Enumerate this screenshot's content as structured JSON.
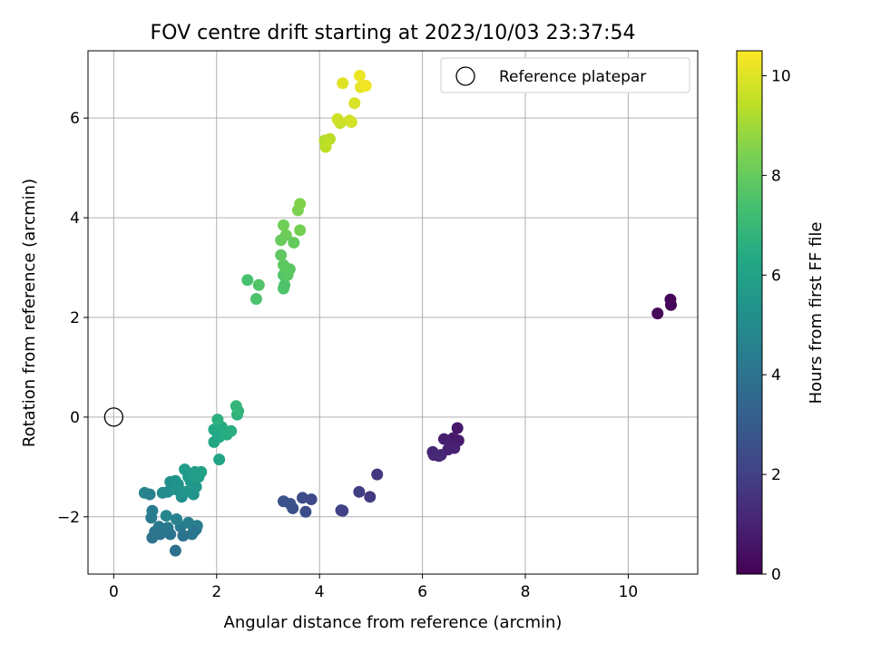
{
  "chart_data": {
    "type": "scatter",
    "title": "FOV centre drift starting at 2023/10/03 23:37:54",
    "xlabel": "Angular distance from reference (arcmin)",
    "ylabel": "Rotation from reference (arcmin)",
    "xlim": [
      -0.5,
      11.35
    ],
    "ylim": [
      -3.15,
      7.35
    ],
    "xticks": [
      0,
      2,
      4,
      6,
      8,
      10
    ],
    "yticks": [
      -2,
      0,
      2,
      4,
      6
    ],
    "xtick_labels": [
      "0",
      "2",
      "4",
      "6",
      "8",
      "10"
    ],
    "ytick_labels": [
      "−2",
      "0",
      "2",
      "4",
      "6"
    ],
    "grid": true,
    "legend": {
      "position": "top-right",
      "entries": [
        "Reference platepar"
      ]
    },
    "colorbar": {
      "label": "Hours from first FF file",
      "min": 0,
      "max": 10.5,
      "colormap": "viridis",
      "ticks": [
        0,
        2,
        4,
        6,
        8,
        10
      ],
      "tick_labels": [
        "0",
        "2",
        "4",
        "6",
        "8",
        "10"
      ]
    },
    "reference": {
      "name": "Reference platepar",
      "x": 0,
      "y": 0
    },
    "points": [
      [
        10.82,
        2.36,
        0.1
      ],
      [
        10.83,
        2.25,
        0.15
      ],
      [
        10.57,
        2.08,
        0.2
      ],
      [
        6.68,
        -0.22,
        0.7
      ],
      [
        6.6,
        -0.42,
        0.75
      ],
      [
        6.7,
        -0.47,
        0.8
      ],
      [
        6.55,
        -0.55,
        0.85
      ],
      [
        6.42,
        -0.44,
        0.9
      ],
      [
        6.62,
        -0.62,
        0.95
      ],
      [
        6.5,
        -0.65,
        1.0
      ],
      [
        6.36,
        -0.76,
        1.05
      ],
      [
        6.2,
        -0.7,
        1.1
      ],
      [
        6.22,
        -0.76,
        1.15
      ],
      [
        6.32,
        -0.78,
        1.2
      ],
      [
        5.12,
        -1.15,
        1.7
      ],
      [
        4.98,
        -1.6,
        1.8
      ],
      [
        4.77,
        -1.5,
        1.9
      ],
      [
        4.45,
        -1.88,
        2.0
      ],
      [
        4.42,
        -1.87,
        2.05
      ],
      [
        3.84,
        -1.65,
        2.3
      ],
      [
        3.67,
        -1.62,
        2.4
      ],
      [
        3.73,
        -1.9,
        2.5
      ],
      [
        3.48,
        -1.83,
        2.6
      ],
      [
        3.43,
        -1.74,
        2.65
      ],
      [
        3.3,
        -1.69,
        2.7
      ],
      [
        0.6,
        -1.52,
        4.7
      ],
      [
        0.7,
        -1.55,
        4.6
      ],
      [
        0.75,
        -1.88,
        4.4
      ],
      [
        0.73,
        -2.02,
        4.3
      ],
      [
        0.8,
        -2.3,
        4.1
      ],
      [
        0.75,
        -2.42,
        4.0
      ],
      [
        0.88,
        -2.2,
        4.2
      ],
      [
        0.9,
        -2.35,
        4.0
      ],
      [
        1.0,
        -2.3,
        4.1
      ],
      [
        1.05,
        -2.22,
        4.2
      ],
      [
        1.1,
        -2.35,
        4.0
      ],
      [
        1.2,
        -2.68,
        3.9
      ],
      [
        1.3,
        -2.2,
        4.3
      ],
      [
        1.35,
        -2.38,
        4.0
      ],
      [
        1.45,
        -2.12,
        4.5
      ],
      [
        1.52,
        -2.35,
        4.1
      ],
      [
        1.6,
        -2.25,
        4.2
      ],
      [
        1.62,
        -2.18,
        4.4
      ],
      [
        1.55,
        -2.3,
        4.1
      ],
      [
        1.02,
        -1.98,
        4.8
      ],
      [
        1.22,
        -2.05,
        4.6
      ],
      [
        0.95,
        -1.52,
        5.0
      ],
      [
        1.05,
        -1.5,
        5.1
      ],
      [
        1.1,
        -1.3,
        5.2
      ],
      [
        1.2,
        -1.45,
        5.3
      ],
      [
        1.25,
        -1.35,
        5.4
      ],
      [
        1.32,
        -1.6,
        5.2
      ],
      [
        1.4,
        -1.5,
        5.5
      ],
      [
        1.45,
        -1.2,
        5.6
      ],
      [
        1.5,
        -1.3,
        5.7
      ],
      [
        1.55,
        -1.55,
        5.4
      ],
      [
        1.6,
        -1.4,
        5.5
      ],
      [
        1.65,
        -1.2,
        5.9
      ],
      [
        1.7,
        -1.1,
        6.0
      ],
      [
        1.58,
        -1.1,
        5.8
      ],
      [
        1.38,
        -1.05,
        5.7
      ],
      [
        1.2,
        -1.28,
        5.3
      ],
      [
        2.05,
        -0.85,
        6.1
      ],
      [
        1.95,
        -0.5,
        6.2
      ],
      [
        2.05,
        -0.4,
        6.3
      ],
      [
        2.0,
        -0.3,
        6.35
      ],
      [
        1.95,
        -0.25,
        6.3
      ],
      [
        2.1,
        -0.2,
        6.4
      ],
      [
        2.2,
        -0.35,
        6.5
      ],
      [
        2.28,
        -0.28,
        6.55
      ],
      [
        2.02,
        -0.05,
        6.6
      ],
      [
        2.4,
        0.05,
        6.7
      ],
      [
        2.42,
        0.12,
        6.8
      ],
      [
        2.38,
        0.22,
        6.9
      ],
      [
        2.6,
        2.75,
        7.4
      ],
      [
        2.77,
        2.37,
        7.5
      ],
      [
        2.82,
        2.65,
        7.6
      ],
      [
        3.3,
        2.58,
        7.5
      ],
      [
        3.32,
        2.65,
        7.55
      ],
      [
        3.3,
        2.85,
        7.6
      ],
      [
        3.35,
        2.95,
        7.7
      ],
      [
        3.38,
        2.85,
        7.75
      ],
      [
        3.42,
        2.97,
        7.8
      ],
      [
        3.3,
        3.05,
        7.85
      ],
      [
        3.25,
        3.25,
        7.9
      ],
      [
        3.5,
        3.5,
        8.0
      ],
      [
        3.25,
        3.55,
        8.05
      ],
      [
        3.35,
        3.65,
        8.1
      ],
      [
        3.3,
        3.85,
        8.2
      ],
      [
        3.62,
        3.75,
        8.3
      ],
      [
        3.58,
        4.15,
        8.4
      ],
      [
        3.62,
        4.28,
        8.5
      ],
      [
        4.1,
        5.55,
        9.3
      ],
      [
        4.2,
        5.58,
        9.4
      ],
      [
        4.12,
        5.42,
        9.45
      ],
      [
        4.4,
        5.9,
        9.6
      ],
      [
        4.35,
        5.98,
        9.7
      ],
      [
        4.58,
        5.95,
        9.75
      ],
      [
        4.62,
        5.92,
        9.8
      ],
      [
        4.68,
        6.3,
        9.9
      ],
      [
        4.45,
        6.7,
        10.0
      ],
      [
        4.8,
        6.62,
        10.1
      ],
      [
        4.78,
        6.85,
        10.2
      ],
      [
        4.9,
        6.65,
        10.3
      ]
    ]
  }
}
